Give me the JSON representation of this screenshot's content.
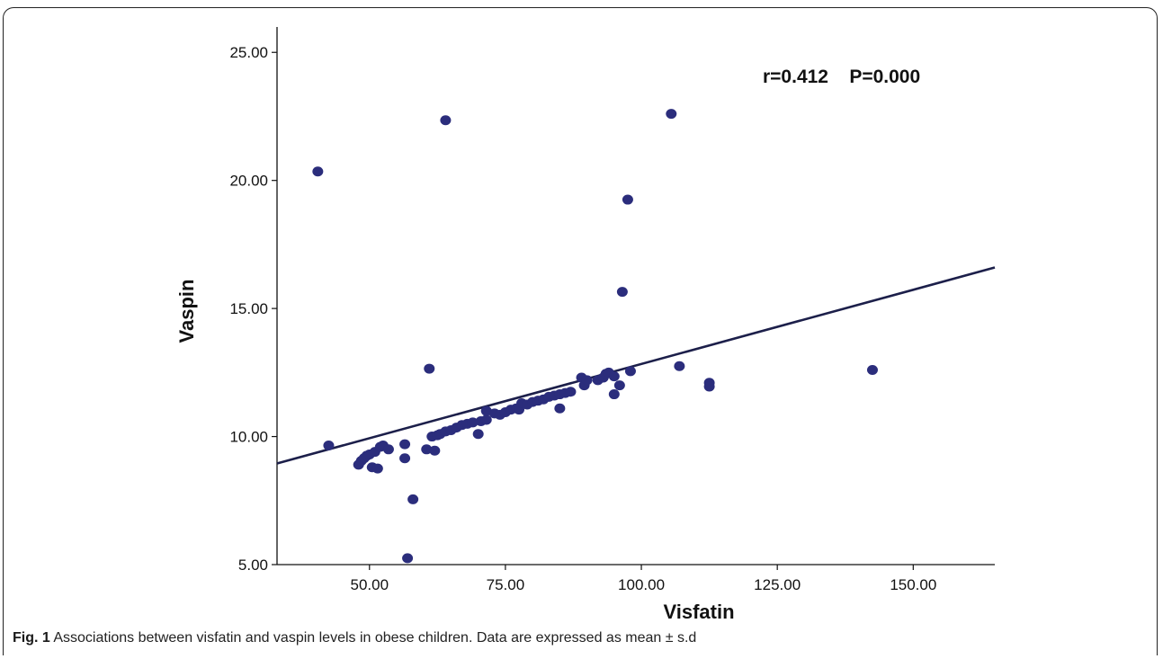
{
  "chart_data": {
    "type": "scatter",
    "xlabel": "Visfatin",
    "ylabel": "Vaspin",
    "xlim": [
      33,
      165
    ],
    "ylim": [
      5,
      25.5
    ],
    "x_ticks": [
      "50.00",
      "75.00",
      "100.00",
      "125.00",
      "150.00"
    ],
    "x_tick_values": [
      50,
      75,
      100,
      125,
      150
    ],
    "y_ticks": [
      "5.00",
      "10.00",
      "15.00",
      "20.00",
      "25.00"
    ],
    "y_tick_values": [
      5,
      10,
      15,
      20,
      25
    ],
    "grid": false,
    "annotation": "r=0.412    P=0.000",
    "point_color": "#2b2d7c",
    "line_color": "#1c1f4a",
    "fit_line": {
      "x": [
        33,
        165
      ],
      "y": [
        8.95,
        16.6
      ]
    },
    "points": [
      [
        40.5,
        20.35
      ],
      [
        42.5,
        9.65
      ],
      [
        48,
        8.9
      ],
      [
        48.5,
        9.05
      ],
      [
        49,
        9.15
      ],
      [
        49.5,
        9.25
      ],
      [
        50,
        9.3
      ],
      [
        50.5,
        8.8
      ],
      [
        51,
        9.4
      ],
      [
        51.5,
        8.75
      ],
      [
        52,
        9.6
      ],
      [
        52.5,
        9.65
      ],
      [
        53.5,
        9.5
      ],
      [
        56.5,
        9.7
      ],
      [
        56.5,
        9.15
      ],
      [
        57,
        5.25
      ],
      [
        58,
        7.55
      ],
      [
        60.5,
        9.5
      ],
      [
        61,
        12.65
      ],
      [
        61.5,
        10.0
      ],
      [
        62,
        9.45
      ],
      [
        62.5,
        10.05
      ],
      [
        63,
        10.1
      ],
      [
        64,
        22.35
      ],
      [
        64,
        10.2
      ],
      [
        65,
        10.25
      ],
      [
        66,
        10.35
      ],
      [
        67,
        10.45
      ],
      [
        68,
        10.5
      ],
      [
        69,
        10.55
      ],
      [
        70,
        10.1
      ],
      [
        70.5,
        10.6
      ],
      [
        71.5,
        10.65
      ],
      [
        71.5,
        11.0
      ],
      [
        73,
        10.9
      ],
      [
        74,
        10.85
      ],
      [
        75,
        10.95
      ],
      [
        76,
        11.05
      ],
      [
        77,
        11.1
      ],
      [
        77.5,
        11.05
      ],
      [
        78,
        11.3
      ],
      [
        79,
        11.25
      ],
      [
        80,
        11.35
      ],
      [
        81,
        11.4
      ],
      [
        82,
        11.45
      ],
      [
        83,
        11.55
      ],
      [
        84,
        11.6
      ],
      [
        85,
        11.65
      ],
      [
        85,
        11.1
      ],
      [
        86,
        11.7
      ],
      [
        87,
        11.75
      ],
      [
        89,
        12.3
      ],
      [
        89.5,
        12.0
      ],
      [
        90,
        12.2
      ],
      [
        92,
        12.2
      ],
      [
        93,
        12.3
      ],
      [
        93.5,
        12.45
      ],
      [
        94,
        12.5
      ],
      [
        95,
        11.65
      ],
      [
        95,
        12.35
      ],
      [
        96,
        12.0
      ],
      [
        96.5,
        15.65
      ],
      [
        97.5,
        19.25
      ],
      [
        98,
        12.55
      ],
      [
        105.5,
        22.6
      ],
      [
        107,
        12.75
      ],
      [
        112.5,
        12.1
      ],
      [
        112.5,
        11.95
      ],
      [
        142.5,
        12.6
      ]
    ]
  },
  "caption": {
    "label": "Fig. 1",
    "text": " Associations between visfatin and vaspin levels in obese children. Data are expressed as mean ± s.d"
  }
}
